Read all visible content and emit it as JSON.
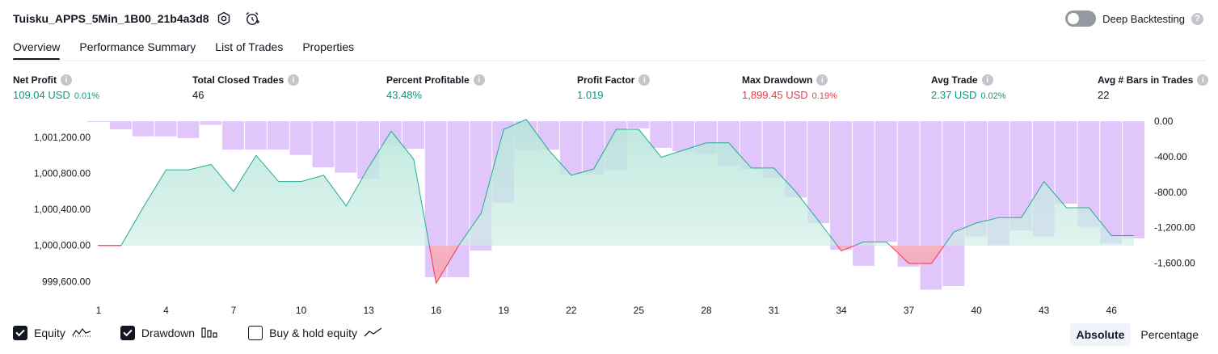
{
  "header": {
    "strategy_name": "Tuisku_APPS_5Min_1B00_21b4a3d8",
    "icons": [
      "settings-icon",
      "alarm-add-icon"
    ],
    "deep_backtesting_label": "Deep Backtesting",
    "deep_backtesting_enabled": false
  },
  "tabs": [
    {
      "label": "Overview",
      "active": true
    },
    {
      "label": "Performance Summary",
      "active": false
    },
    {
      "label": "List of Trades",
      "active": false
    },
    {
      "label": "Properties",
      "active": false
    }
  ],
  "metrics": {
    "net_profit": {
      "label": "Net Profit",
      "value": "109.04 USD",
      "sub": "0.01%"
    },
    "total_closed_trades": {
      "label": "Total Closed Trades",
      "value": "46"
    },
    "percent_profitable": {
      "label": "Percent Profitable",
      "value": "43.48%"
    },
    "profit_factor": {
      "label": "Profit Factor",
      "value": "1.019"
    },
    "max_drawdown": {
      "label": "Max Drawdown",
      "value": "1,899.45 USD",
      "sub": "0.19%"
    },
    "avg_trade": {
      "label": "Avg Trade",
      "value": "2.37 USD",
      "sub": "0.02%"
    },
    "avg_bars": {
      "label": "Avg # Bars in Trades",
      "value": "22"
    }
  },
  "colors": {
    "positive": "#089981",
    "negative": "#f23645",
    "drawdown_bar": "#e1c6fb",
    "equity_line": "#22ab94",
    "equity_fill": "#d6f1ea"
  },
  "chart_data": {
    "type": "line",
    "x_ticks": [
      "1",
      "4",
      "7",
      "10",
      "13",
      "16",
      "19",
      "22",
      "25",
      "28",
      "31",
      "34",
      "37",
      "40",
      "43",
      "46"
    ],
    "left_axis": {
      "labels": [
        "1,001,200.00",
        "1,000,800.00",
        "1,000,400.00",
        "1,000,000.00",
        "999,600.00"
      ],
      "ylim": [
        999450,
        1001380
      ]
    },
    "right_axis": {
      "labels": [
        "0.00",
        "-400.00",
        "-800.00",
        "-1,200.00",
        "-1,600.00"
      ],
      "ylim": [
        -1960,
        0
      ]
    },
    "series": [
      {
        "name": "Equity",
        "x": [
          1,
          2,
          3,
          4,
          5,
          6,
          7,
          8,
          9,
          10,
          11,
          12,
          13,
          14,
          15,
          16,
          17,
          18,
          19,
          20,
          21,
          22,
          23,
          24,
          25,
          26,
          27,
          28,
          29,
          30,
          31,
          32,
          33,
          34,
          35,
          36,
          37,
          38,
          39,
          40,
          41,
          42,
          43,
          44,
          45,
          46,
          47
        ],
        "values": [
          1000000,
          1000000,
          1000430,
          1000840,
          1000840,
          1000900,
          1000600,
          1001000,
          1000710,
          1000710,
          1000780,
          1000440,
          1000870,
          1001270,
          1000960,
          999580,
          1000000,
          1000360,
          1001290,
          1001400,
          1001060,
          1000780,
          1000850,
          1001290,
          1001290,
          1000980,
          1001060,
          1001140,
          1001140,
          1000860,
          1000860,
          1000590,
          1000270,
          999940,
          1000040,
          1000040,
          999800,
          999800,
          1000150,
          1000250,
          1000310,
          1000310,
          1000710,
          1000420,
          1000420,
          1000110,
          1000110
        ]
      },
      {
        "name": "Drawdown",
        "x": [
          1,
          2,
          3,
          4,
          5,
          6,
          7,
          8,
          9,
          10,
          11,
          12,
          13,
          14,
          15,
          16,
          17,
          18,
          19,
          20,
          21,
          22,
          23,
          24,
          25,
          26,
          27,
          28,
          29,
          30,
          31,
          32,
          33,
          34,
          35,
          36,
          37,
          38,
          39,
          40,
          41,
          42,
          43,
          44,
          45,
          46,
          47
        ],
        "values": [
          0,
          -90,
          -170,
          -170,
          -190,
          -40,
          -320,
          -320,
          -320,
          -380,
          -520,
          -580,
          -650,
          -280,
          -310,
          -1760,
          -1760,
          -1460,
          -920,
          -320,
          -320,
          -600,
          -600,
          -550,
          -80,
          -300,
          -340,
          -370,
          -500,
          -540,
          -640,
          -860,
          -1150,
          -1450,
          -1630,
          -1360,
          -1640,
          -1900,
          -1860,
          -1300,
          -1400,
          -1230,
          -1300,
          -930,
          -1190,
          -1380,
          -1320
        ]
      }
    ]
  },
  "legend": [
    {
      "label": "Equity",
      "checked": true,
      "icon": "equity-line-icon"
    },
    {
      "label": "Drawdown",
      "checked": true,
      "icon": "drawdown-bars-icon"
    },
    {
      "label": "Buy & hold equity",
      "checked": false,
      "icon": "buy-hold-line-icon"
    }
  ],
  "mode": {
    "absolute_label": "Absolute",
    "percentage_label": "Percentage",
    "selected": "Absolute"
  }
}
